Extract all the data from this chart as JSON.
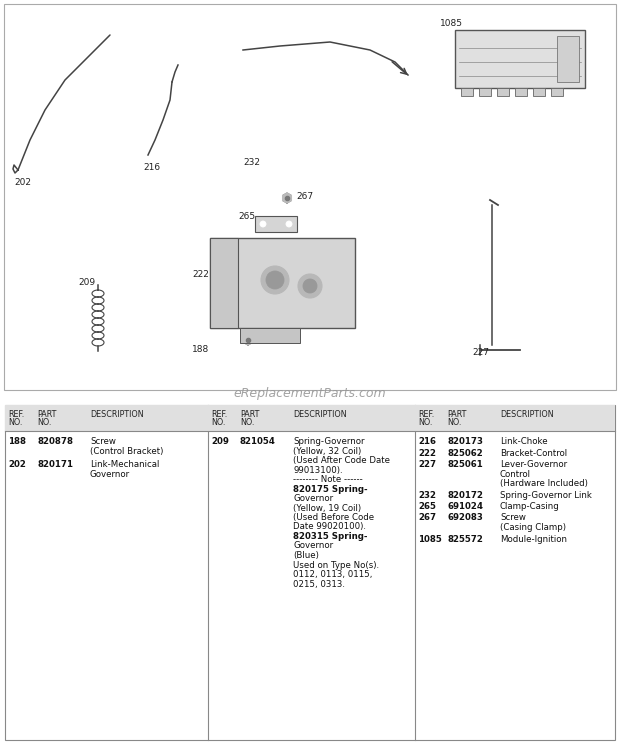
{
  "bg_color": "#ffffff",
  "watermark": "eReplacementParts.com",
  "parts_col1": [
    {
      "ref": "188",
      "part": "820878",
      "desc": "Screw\n(Control Bracket)"
    },
    {
      "ref": "202",
      "part": "820171",
      "desc": "Link-Mechanical\nGovernor"
    }
  ],
  "parts_col2": [
    {
      "ref": "209",
      "part": "821054",
      "lines": [
        {
          "text": "Spring-Governor",
          "bold": false
        },
        {
          "text": "(Yellow, 32 Coil)",
          "bold": false
        },
        {
          "text": "(Used After Code Date",
          "bold": false
        },
        {
          "text": "99013100).",
          "bold": false
        },
        {
          "text": "-------- Note ------",
          "bold": false
        },
        {
          "text": "820175 Spring-",
          "bold": true
        },
        {
          "text": "Governor",
          "bold": false
        },
        {
          "text": "(Yellow, 19 Coil)",
          "bold": false
        },
        {
          "text": "(Used Before Code",
          "bold": false
        },
        {
          "text": "Date 99020100).",
          "bold": false
        },
        {
          "text": "820315 Spring-",
          "bold": true
        },
        {
          "text": "Governor",
          "bold": false
        },
        {
          "text": "(Blue)",
          "bold": false
        },
        {
          "text": "Used on Type No(s).",
          "bold": false
        },
        {
          "text": "0112, 0113, 0115,",
          "bold": false
        },
        {
          "text": "0215, 0313.",
          "bold": false
        }
      ]
    }
  ],
  "parts_col3": [
    {
      "ref": "216",
      "part": "820173",
      "desc": "Link-Choke"
    },
    {
      "ref": "222",
      "part": "825062",
      "desc": "Bracket-Control"
    },
    {
      "ref": "227",
      "part": "825061",
      "desc": "Lever-Governor\nControl\n(Hardware Included)"
    },
    {
      "ref": "232",
      "part": "820172",
      "desc": "Spring-Governor Link"
    },
    {
      "ref": "265",
      "part": "691024",
      "desc": "Clamp-Casing"
    },
    {
      "ref": "267",
      "part": "692083",
      "desc": "Screw\n(Casing Clamp)"
    },
    {
      "ref": "1085",
      "part": "825572",
      "desc": "Module-Ignition"
    }
  ]
}
